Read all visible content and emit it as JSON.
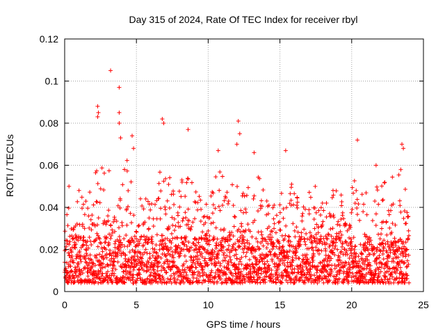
{
  "chart_data": {
    "type": "scatter",
    "title": "Day 315 of 2024, Rate Of TEC Index for receiver rbyl",
    "xlabel": "GPS time / hours",
    "ylabel": "ROTI / TECUs",
    "xlim": [
      0,
      25
    ],
    "ylim": [
      0,
      0.12
    ],
    "x_ticks": [
      0,
      5,
      10,
      15,
      20,
      25
    ],
    "x_tick_labels": [
      "0",
      "5",
      "10",
      "15",
      "20",
      "25"
    ],
    "y_ticks": [
      0,
      0.02,
      0.04,
      0.06,
      0.08,
      0.1,
      0.12
    ],
    "y_tick_labels": [
      "0",
      "0.02",
      "0.04",
      "0.06",
      "0.08",
      "0.1",
      "0.12"
    ],
    "grid": true,
    "marker": "plus",
    "color": "#ff0000",
    "series": [
      {
        "name": "ROTI",
        "notable_points": [
          {
            "x": 3.2,
            "y": 0.105
          },
          {
            "x": 3.8,
            "y": 0.097
          },
          {
            "x": 2.3,
            "y": 0.088
          },
          {
            "x": 2.35,
            "y": 0.085
          },
          {
            "x": 2.3,
            "y": 0.083
          },
          {
            "x": 3.8,
            "y": 0.085
          },
          {
            "x": 3.8,
            "y": 0.08
          },
          {
            "x": 3.9,
            "y": 0.073
          },
          {
            "x": 6.8,
            "y": 0.082
          },
          {
            "x": 6.9,
            "y": 0.08
          },
          {
            "x": 8.6,
            "y": 0.077
          },
          {
            "x": 12.1,
            "y": 0.081
          },
          {
            "x": 12.2,
            "y": 0.075
          },
          {
            "x": 12.0,
            "y": 0.07
          },
          {
            "x": 20.4,
            "y": 0.072
          },
          {
            "x": 23.5,
            "y": 0.07
          },
          {
            "x": 23.6,
            "y": 0.068
          },
          {
            "x": 10.7,
            "y": 0.067
          },
          {
            "x": 15.4,
            "y": 0.067
          },
          {
            "x": 13.2,
            "y": 0.066
          },
          {
            "x": 4.7,
            "y": 0.074
          },
          {
            "x": 4.8,
            "y": 0.068
          },
          {
            "x": 1.0,
            "y": 0.048
          },
          {
            "x": 0.3,
            "y": 0.05
          },
          {
            "x": 18.7,
            "y": 0.048
          },
          {
            "x": 21.7,
            "y": 0.06
          }
        ],
        "envelope": [
          {
            "x": 0,
            "y": 0.045
          },
          {
            "x": 0.5,
            "y": 0.048
          },
          {
            "x": 1,
            "y": 0.045
          },
          {
            "x": 1.5,
            "y": 0.045
          },
          {
            "x": 2,
            "y": 0.06
          },
          {
            "x": 2.5,
            "y": 0.062
          },
          {
            "x": 3,
            "y": 0.06
          },
          {
            "x": 3.5,
            "y": 0.055
          },
          {
            "x": 4,
            "y": 0.06
          },
          {
            "x": 4.5,
            "y": 0.064
          },
          {
            "x": 5,
            "y": 0.05
          },
          {
            "x": 5.5,
            "y": 0.045
          },
          {
            "x": 6,
            "y": 0.05
          },
          {
            "x": 6.5,
            "y": 0.06
          },
          {
            "x": 7,
            "y": 0.065
          },
          {
            "x": 7.5,
            "y": 0.055
          },
          {
            "x": 8,
            "y": 0.05
          },
          {
            "x": 8.5,
            "y": 0.06
          },
          {
            "x": 9,
            "y": 0.05
          },
          {
            "x": 9.5,
            "y": 0.045
          },
          {
            "x": 10,
            "y": 0.042
          },
          {
            "x": 10.5,
            "y": 0.06
          },
          {
            "x": 11,
            "y": 0.055
          },
          {
            "x": 11.5,
            "y": 0.05
          },
          {
            "x": 12,
            "y": 0.062
          },
          {
            "x": 12.5,
            "y": 0.055
          },
          {
            "x": 13,
            "y": 0.052
          },
          {
            "x": 13.5,
            "y": 0.058
          },
          {
            "x": 14,
            "y": 0.048
          },
          {
            "x": 14.5,
            "y": 0.045
          },
          {
            "x": 15,
            "y": 0.048
          },
          {
            "x": 15.5,
            "y": 0.055
          },
          {
            "x": 16,
            "y": 0.05
          },
          {
            "x": 16.5,
            "y": 0.045
          },
          {
            "x": 17,
            "y": 0.048
          },
          {
            "x": 17.5,
            "y": 0.052
          },
          {
            "x": 18,
            "y": 0.045
          },
          {
            "x": 18.5,
            "y": 0.048
          },
          {
            "x": 19,
            "y": 0.05
          },
          {
            "x": 19.5,
            "y": 0.045
          },
          {
            "x": 20,
            "y": 0.05
          },
          {
            "x": 20.5,
            "y": 0.058
          },
          {
            "x": 21,
            "y": 0.048
          },
          {
            "x": 21.5,
            "y": 0.052
          },
          {
            "x": 22,
            "y": 0.05
          },
          {
            "x": 22.5,
            "y": 0.058
          },
          {
            "x": 23,
            "y": 0.055
          },
          {
            "x": 23.5,
            "y": 0.062
          },
          {
            "x": 24,
            "y": 0.035
          }
        ],
        "x_range": [
          0,
          24
        ],
        "typical_baseline": 0.012,
        "dense_band": [
          0.004,
          0.025
        ]
      }
    ]
  }
}
